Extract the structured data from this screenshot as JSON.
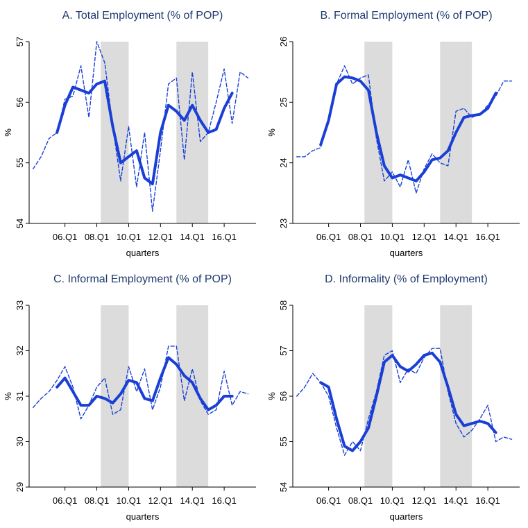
{
  "chart_data": [
    {
      "type": "line",
      "title": "A. Total Employment (% of POP)",
      "xlabel": "quarters",
      "ylabel": "%",
      "x": [
        4.0,
        4.5,
        5.0,
        5.5,
        6.0,
        6.5,
        7.0,
        7.5,
        8.0,
        8.5,
        9.0,
        9.5,
        10.0,
        10.5,
        11.0,
        11.5,
        12.0,
        12.5,
        13.0,
        13.5,
        14.0,
        14.5,
        15.0,
        15.5,
        16.0,
        16.5,
        17.0,
        17.5
      ],
      "xlim": [
        3.75,
        18.0
      ],
      "xticks": [
        {
          "value": 6,
          "label": "06.Q1"
        },
        {
          "value": 8,
          "label": "08.Q1"
        },
        {
          "value": 10,
          "label": "10.Q1"
        },
        {
          "value": 12,
          "label": "12.Q1"
        },
        {
          "value": 14,
          "label": "14.Q1"
        },
        {
          "value": 16,
          "label": "16.Q1"
        }
      ],
      "ylim": [
        54,
        57
      ],
      "yticks": [
        54,
        55,
        56,
        57
      ],
      "shaded_regions": [
        [
          8.25,
          10.0
        ],
        [
          13.0,
          15.0
        ]
      ],
      "shade_color": "#dcdcdc",
      "series": [
        {
          "color": "#1a3fd6",
          "style": "dashed",
          "values": [
            54.9,
            55.1,
            55.4,
            55.5,
            56.05,
            56.1,
            56.6,
            55.75,
            57.0,
            56.65,
            55.6,
            54.7,
            55.6,
            54.6,
            55.5,
            54.2,
            55.2,
            56.3,
            56.4,
            55.05,
            56.5,
            55.35,
            55.5,
            56.0,
            56.55,
            55.65,
            56.5,
            56.4
          ]
        },
        {
          "color": "#1a3fd6",
          "style": "solid",
          "values": [
            null,
            null,
            null,
            55.5,
            55.95,
            56.25,
            56.2,
            56.15,
            56.3,
            56.35,
            55.6,
            55.0,
            55.1,
            55.2,
            54.75,
            54.65,
            55.5,
            55.95,
            55.85,
            55.7,
            55.95,
            55.7,
            55.5,
            55.55,
            55.9,
            56.15,
            null,
            null
          ]
        }
      ]
    },
    {
      "type": "line",
      "title": "B. Formal Employment (% of POP)",
      "xlabel": "quarters",
      "ylabel": "%",
      "x": [
        4.0,
        4.5,
        5.0,
        5.5,
        6.0,
        6.5,
        7.0,
        7.5,
        8.0,
        8.5,
        9.0,
        9.5,
        10.0,
        10.5,
        11.0,
        11.5,
        12.0,
        12.5,
        13.0,
        13.5,
        14.0,
        14.5,
        15.0,
        15.5,
        16.0,
        16.5,
        17.0,
        17.5
      ],
      "xlim": [
        3.75,
        18.0
      ],
      "xticks": [
        {
          "value": 6,
          "label": "06.Q1"
        },
        {
          "value": 8,
          "label": "08.Q1"
        },
        {
          "value": 10,
          "label": "10.Q1"
        },
        {
          "value": 12,
          "label": "12.Q1"
        },
        {
          "value": 14,
          "label": "14.Q1"
        },
        {
          "value": 16,
          "label": "16.Q1"
        }
      ],
      "ylim": [
        23,
        26
      ],
      "yticks": [
        23,
        24,
        25,
        26
      ],
      "shaded_regions": [
        [
          8.25,
          10.0
        ],
        [
          13.0,
          15.0
        ]
      ],
      "shade_color": "#dcdcdc",
      "series": [
        {
          "color": "#1a3fd6",
          "style": "dashed",
          "values": [
            24.1,
            24.1,
            24.2,
            24.25,
            24.7,
            25.3,
            25.6,
            25.3,
            25.4,
            25.45,
            24.4,
            23.7,
            23.85,
            23.6,
            24.05,
            23.5,
            23.9,
            24.15,
            24.0,
            23.95,
            24.85,
            24.9,
            24.75,
            24.8,
            24.95,
            25.1,
            25.35,
            25.35
          ]
        },
        {
          "color": "#1a3fd6",
          "style": "solid",
          "values": [
            null,
            null,
            null,
            24.3,
            24.7,
            25.3,
            25.42,
            25.4,
            25.35,
            25.2,
            24.5,
            23.95,
            23.75,
            23.8,
            23.75,
            23.7,
            23.85,
            24.05,
            24.08,
            24.2,
            24.5,
            24.75,
            24.78,
            24.8,
            24.9,
            25.15,
            null,
            null
          ]
        }
      ]
    },
    {
      "type": "line",
      "title": "C. Informal Employment (% of POP)",
      "xlabel": "quarters",
      "ylabel": "%",
      "x": [
        4.0,
        4.5,
        5.0,
        5.5,
        6.0,
        6.5,
        7.0,
        7.5,
        8.0,
        8.5,
        9.0,
        9.5,
        10.0,
        10.5,
        11.0,
        11.5,
        12.0,
        12.5,
        13.0,
        13.5,
        14.0,
        14.5,
        15.0,
        15.5,
        16.0,
        16.5,
        17.0,
        17.5
      ],
      "xlim": [
        3.75,
        18.0
      ],
      "xticks": [
        {
          "value": 6,
          "label": "06.Q1"
        },
        {
          "value": 8,
          "label": "08.Q1"
        },
        {
          "value": 10,
          "label": "10.Q1"
        },
        {
          "value": 12,
          "label": "12.Q1"
        },
        {
          "value": 14,
          "label": "14.Q1"
        },
        {
          "value": 16,
          "label": "16.Q1"
        }
      ],
      "ylim": [
        29,
        33
      ],
      "yticks": [
        29,
        30,
        31,
        32,
        33
      ],
      "shaded_regions": [
        [
          8.25,
          10.0
        ],
        [
          13.0,
          15.0
        ]
      ],
      "shade_color": "#dcdcdc",
      "series": [
        {
          "color": "#1a3fd6",
          "style": "dashed",
          "values": [
            30.75,
            30.95,
            31.1,
            31.35,
            31.65,
            31.2,
            30.5,
            30.8,
            31.2,
            31.4,
            30.6,
            30.7,
            31.65,
            31.1,
            31.6,
            30.7,
            31.2,
            32.1,
            32.1,
            30.9,
            31.6,
            30.9,
            30.6,
            30.7,
            31.55,
            30.8,
            31.1,
            31.05
          ]
        },
        {
          "color": "#1a3fd6",
          "style": "solid",
          "values": [
            null,
            null,
            null,
            31.2,
            31.4,
            31.1,
            30.8,
            30.8,
            31.0,
            30.95,
            30.85,
            31.05,
            31.35,
            31.3,
            30.95,
            30.9,
            31.4,
            31.85,
            31.7,
            31.45,
            31.3,
            30.95,
            30.7,
            30.8,
            31.0,
            31.0,
            null,
            null
          ]
        }
      ]
    },
    {
      "type": "line",
      "title": "D. Informality (% of Employment)",
      "xlabel": "quarters",
      "ylabel": "%",
      "x": [
        4.0,
        4.5,
        5.0,
        5.5,
        6.0,
        6.5,
        7.0,
        7.5,
        8.0,
        8.5,
        9.0,
        9.5,
        10.0,
        10.5,
        11.0,
        11.5,
        12.0,
        12.5,
        13.0,
        13.5,
        14.0,
        14.5,
        15.0,
        15.5,
        16.0,
        16.5,
        17.0,
        17.5
      ],
      "xlim": [
        3.75,
        18.0
      ],
      "xticks": [
        {
          "value": 6,
          "label": "06.Q1"
        },
        {
          "value": 8,
          "label": "08.Q1"
        },
        {
          "value": 10,
          "label": "10.Q1"
        },
        {
          "value": 12,
          "label": "12.Q1"
        },
        {
          "value": 14,
          "label": "14.Q1"
        },
        {
          "value": 16,
          "label": "16.Q1"
        }
      ],
      "ylim": [
        54,
        58
      ],
      "yticks": [
        54,
        55,
        56,
        57,
        58
      ],
      "shaded_regions": [
        [
          8.25,
          10.0
        ],
        [
          13.0,
          15.0
        ]
      ],
      "shade_color": "#dcdcdc",
      "series": [
        {
          "color": "#1a3fd6",
          "style": "dashed",
          "values": [
            56.0,
            56.2,
            56.5,
            56.3,
            56.0,
            55.3,
            54.7,
            55.0,
            54.8,
            55.5,
            56.1,
            56.9,
            57.0,
            56.3,
            56.6,
            56.5,
            56.85,
            57.05,
            57.05,
            56.1,
            55.4,
            55.1,
            55.25,
            55.5,
            55.8,
            55.0,
            55.1,
            55.05
          ]
        },
        {
          "color": "#1a3fd6",
          "style": "solid",
          "values": [
            null,
            null,
            null,
            56.3,
            56.2,
            55.5,
            54.9,
            54.8,
            55.0,
            55.3,
            56.0,
            56.75,
            56.9,
            56.65,
            56.55,
            56.7,
            56.9,
            56.95,
            56.75,
            56.2,
            55.6,
            55.35,
            55.4,
            55.45,
            55.4,
            55.2,
            null,
            null
          ]
        }
      ]
    }
  ]
}
